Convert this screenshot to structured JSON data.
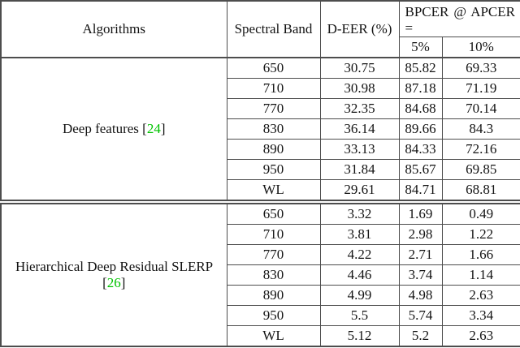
{
  "header": {
    "col_algorithms": "Algorithms",
    "col_spectral_band": "Spectral Band",
    "col_deer": "D-EER (%)",
    "col_bpcer_line1": "BPCER @ APCER",
    "col_bpcer_line2": "=",
    "col_apcer_5": "5%",
    "col_apcer_10": "10%"
  },
  "colors": {
    "citation_green": "#00c300",
    "border": "#4d4d4d"
  },
  "table": {
    "cite_open": "[",
    "cite_close": "]",
    "blocks": [
      {
        "algorithm": "Deep features",
        "citation": "24",
        "rows": [
          {
            "band": "650",
            "deer": "30.75",
            "bpcer5": "85.82",
            "bpcer10": "69.33"
          },
          {
            "band": "710",
            "deer": "30.98",
            "bpcer5": "87.18",
            "bpcer10": "71.19"
          },
          {
            "band": "770",
            "deer": "32.35",
            "bpcer5": "84.68",
            "bpcer10": "70.14"
          },
          {
            "band": "830",
            "deer": "36.14",
            "bpcer5": "89.66",
            "bpcer10": "84.3"
          },
          {
            "band": "890",
            "deer": "33.13",
            "bpcer5": "84.33",
            "bpcer10": "72.16"
          },
          {
            "band": "950",
            "deer": "31.84",
            "bpcer5": "85.67",
            "bpcer10": "69.85"
          },
          {
            "band": "WL",
            "deer": "29.61",
            "bpcer5": "84.71",
            "bpcer10": "68.81"
          }
        ]
      },
      {
        "algorithm": "Hierarchical Deep Residual SLERP",
        "citation": "26",
        "rows": [
          {
            "band": "650",
            "deer": "3.32",
            "bpcer5": "1.69",
            "bpcer10": "0.49"
          },
          {
            "band": "710",
            "deer": "3.81",
            "bpcer5": "2.98",
            "bpcer10": "1.22"
          },
          {
            "band": "770",
            "deer": "4.22",
            "bpcer5": "2.71",
            "bpcer10": "1.66"
          },
          {
            "band": "830",
            "deer": "4.46",
            "bpcer5": "3.74",
            "bpcer10": "1.14"
          },
          {
            "band": "890",
            "deer": "4.99",
            "bpcer5": "4.98",
            "bpcer10": "2.63"
          },
          {
            "band": "950",
            "deer": "5.5",
            "bpcer5": "5.74",
            "bpcer10": "3.34"
          },
          {
            "band": "WL",
            "deer": "5.12",
            "bpcer5": "5.2",
            "bpcer10": "2.63"
          }
        ]
      }
    ]
  }
}
